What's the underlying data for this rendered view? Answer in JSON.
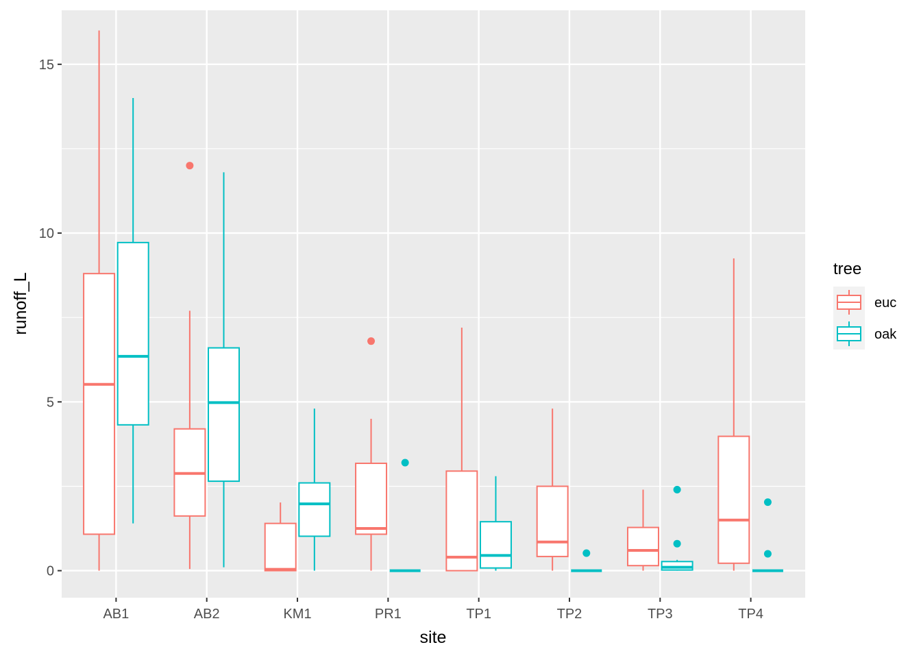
{
  "chart_data": {
    "type": "boxplot",
    "xlabel": "site",
    "ylabel": "runoff_L",
    "ylim": [
      -0.8,
      16.6
    ],
    "y_ticks": [
      0,
      5,
      10,
      15
    ],
    "y_tick_labels": [
      "0",
      "5",
      "10",
      "15"
    ],
    "grid": true,
    "categories": [
      "AB1",
      "AB2",
      "KM1",
      "PR1",
      "TP1",
      "TP2",
      "TP3",
      "TP4"
    ],
    "legend": {
      "title": "tree",
      "position": "right",
      "entries": [
        "euc",
        "oak"
      ]
    },
    "colors": {
      "euc": "#F8766D",
      "oak": "#00BFC4"
    },
    "series": [
      {
        "name": "euc",
        "boxes": [
          {
            "site": "AB1",
            "min": 0,
            "q1": 1.08,
            "median": 5.52,
            "q3": 8.8,
            "max": 16.0,
            "outliers": []
          },
          {
            "site": "AB2",
            "min": 0.05,
            "q1": 1.62,
            "median": 2.88,
            "q3": 4.2,
            "max": 7.7,
            "outliers": [
              12.0
            ]
          },
          {
            "site": "KM1",
            "min": 0,
            "q1": 0,
            "median": 0.04,
            "q3": 1.4,
            "max": 2.02,
            "outliers": []
          },
          {
            "site": "PR1",
            "min": 0,
            "q1": 1.08,
            "median": 1.25,
            "q3": 3.18,
            "max": 4.5,
            "outliers": [
              6.8
            ]
          },
          {
            "site": "TP1",
            "min": 0,
            "q1": 0,
            "median": 0.4,
            "q3": 2.95,
            "max": 7.2,
            "outliers": []
          },
          {
            "site": "TP2",
            "min": 0,
            "q1": 0.42,
            "median": 0.85,
            "q3": 2.5,
            "max": 4.8,
            "outliers": []
          },
          {
            "site": "TP3",
            "min": 0,
            "q1": 0.15,
            "median": 0.6,
            "q3": 1.28,
            "max": 2.4,
            "outliers": []
          },
          {
            "site": "TP4",
            "min": 0,
            "q1": 0.22,
            "median": 1.5,
            "q3": 3.98,
            "max": 9.25,
            "outliers": []
          }
        ]
      },
      {
        "name": "oak",
        "boxes": [
          {
            "site": "AB1",
            "min": 1.4,
            "q1": 4.32,
            "median": 6.35,
            "q3": 9.72,
            "max": 14.0,
            "outliers": []
          },
          {
            "site": "AB2",
            "min": 0.1,
            "q1": 2.65,
            "median": 4.98,
            "q3": 6.6,
            "max": 11.8,
            "outliers": []
          },
          {
            "site": "KM1",
            "min": 0,
            "q1": 1.02,
            "median": 1.98,
            "q3": 2.6,
            "max": 4.8,
            "outliers": []
          },
          {
            "site": "PR1",
            "min": 0,
            "q1": 0,
            "median": 0,
            "q3": 0,
            "max": 0,
            "outliers": [
              3.2
            ]
          },
          {
            "site": "TP1",
            "min": 0,
            "q1": 0.08,
            "median": 0.45,
            "q3": 1.45,
            "max": 2.8,
            "outliers": []
          },
          {
            "site": "TP2",
            "min": 0,
            "q1": 0,
            "median": 0,
            "q3": 0,
            "max": 0,
            "outliers": [
              0.52
            ]
          },
          {
            "site": "TP3",
            "min": 0,
            "q1": 0.02,
            "median": 0.1,
            "q3": 0.27,
            "max": 0.32,
            "outliers": [
              0.8,
              2.4
            ]
          },
          {
            "site": "TP4",
            "min": 0,
            "q1": 0,
            "median": 0,
            "q3": 0,
            "max": 0,
            "outliers": [
              0.5,
              2.03
            ]
          }
        ]
      }
    ]
  }
}
